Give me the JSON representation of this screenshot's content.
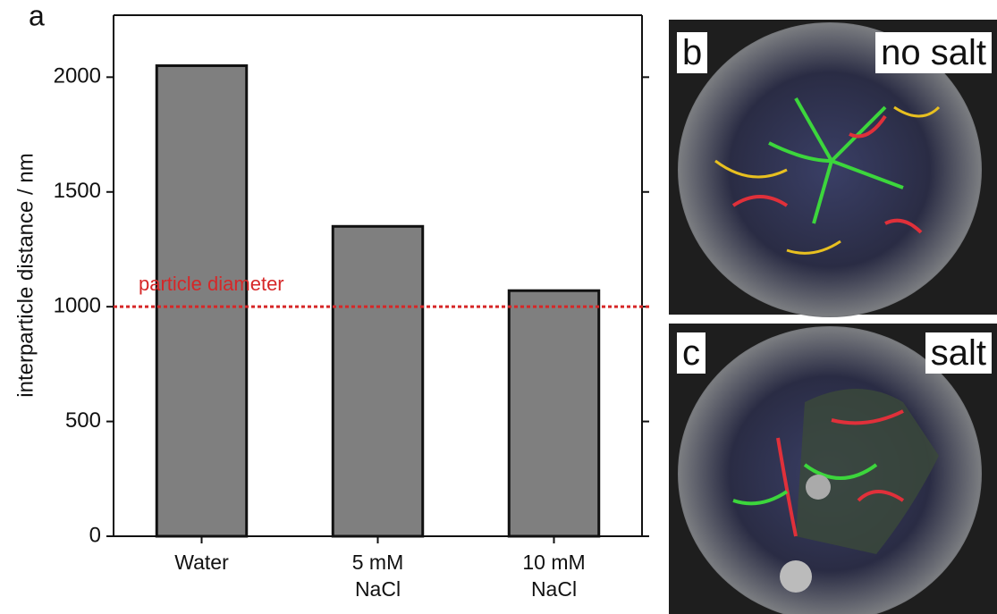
{
  "chart_data": {
    "type": "bar",
    "panel_label": "a",
    "ylabel": "interparticle distance / nm",
    "categories": [
      "Water",
      "5 mM NaCl",
      "10 mM NaCl"
    ],
    "values": [
      2050,
      1350,
      1070
    ],
    "color": "#7f7f7f",
    "ylim": [
      0,
      2270
    ],
    "yticks": [
      0,
      500,
      1000,
      1500,
      2000
    ],
    "reference_line": {
      "value": 1000,
      "label": "particle diameter",
      "color": "#d62728"
    }
  },
  "panels": [
    {
      "label": "b",
      "caption": "no salt"
    },
    {
      "label": "c",
      "caption": "salt"
    }
  ]
}
